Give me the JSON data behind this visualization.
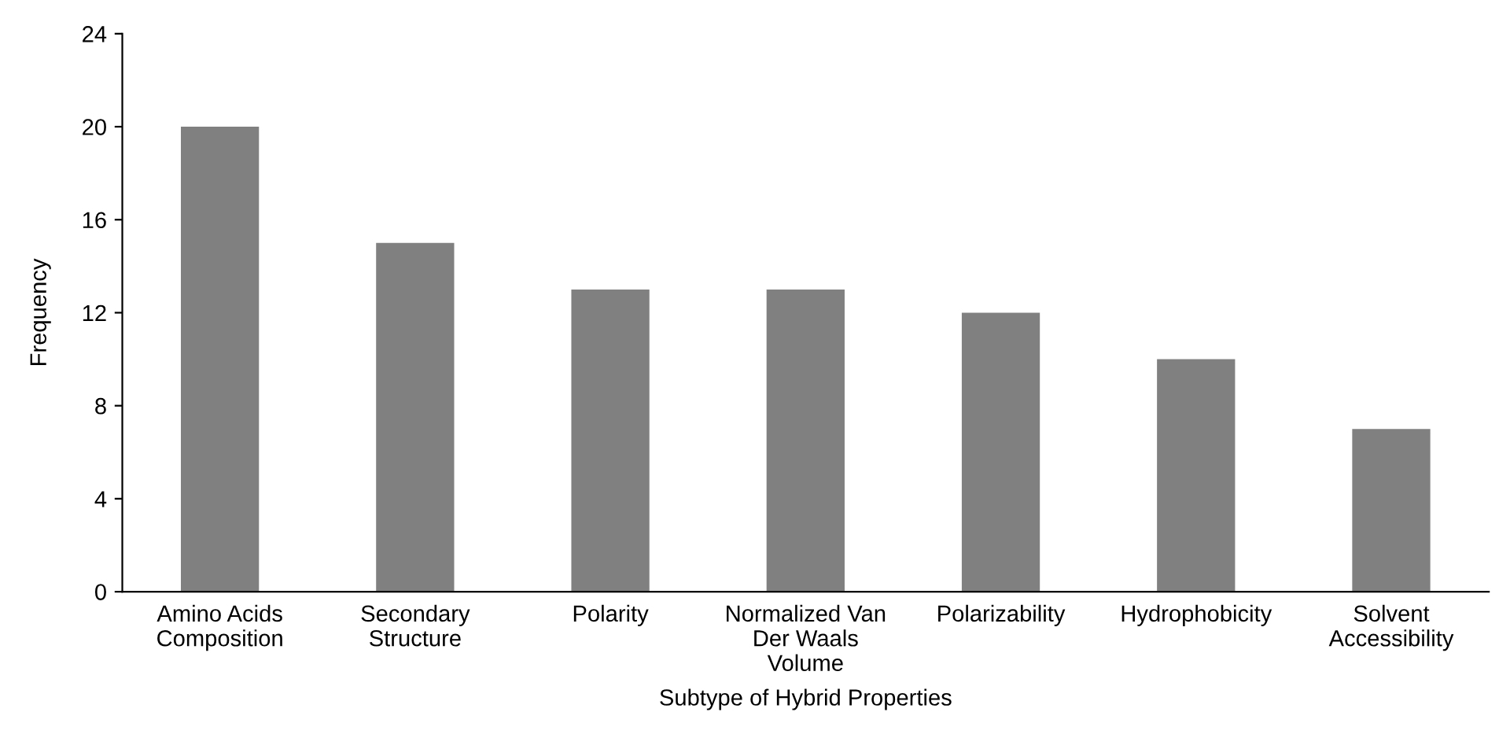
{
  "chart_data": {
    "type": "bar",
    "xlabel": "Subtype of Hybrid Properties",
    "ylabel": "Frequency",
    "categories": [
      "Amino Acids\nComposition",
      "Secondary\nStructure",
      "Polarity",
      "Normalized Van\nDer Waals\nVolume",
      "Polarizability",
      "Hydrophobicity",
      "Solvent\nAccessibility"
    ],
    "values": [
      20,
      15,
      13,
      13,
      12,
      10,
      7
    ],
    "color": "#808080",
    "ylim": [
      0,
      24
    ],
    "yticks": [
      0,
      4,
      8,
      12,
      16,
      20,
      24
    ],
    "grid": false,
    "legend": false
  }
}
